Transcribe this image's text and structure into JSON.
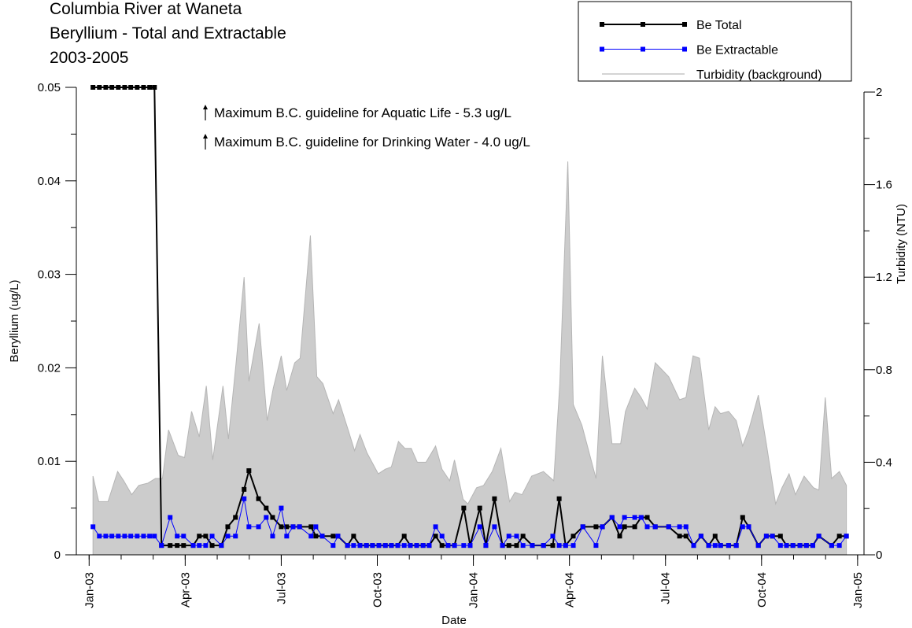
{
  "chart_data": {
    "type": "line",
    "title_lines": [
      "Columbia River at Waneta",
      "Beryllium - Total and Extractable",
      "2003-2005"
    ],
    "annotations": [
      "Maximum B.C. guideline for Aquatic Life - 5.3 ug/L",
      "Maximum B.C. guideline for Drinking Water - 4.0 ug/L"
    ],
    "x_label": "Date",
    "y_label": "Beryllium (ug/L)",
    "y2_label": "Turbidity (NTU)",
    "xlim": [
      -0.4,
      24.2
    ],
    "xticks": [
      {
        "value": 0,
        "label": "Jan-03"
      },
      {
        "value": 3,
        "label": "Apr-03"
      },
      {
        "value": 6,
        "label": "Jul-03"
      },
      {
        "value": 9,
        "label": "Oct-03"
      },
      {
        "value": 12,
        "label": "Jan-04"
      },
      {
        "value": 15,
        "label": "Apr-04"
      },
      {
        "value": 18,
        "label": "Jul-04"
      },
      {
        "value": 21,
        "label": "Oct-04"
      },
      {
        "value": 24,
        "label": "Jan-05"
      }
    ],
    "ylim": [
      0,
      0.05
    ],
    "yticks": [
      0,
      0.01,
      0.02,
      0.03,
      0.04,
      0.05
    ],
    "y2lim": [
      0,
      2
    ],
    "y2ticks": [
      0,
      0.4,
      0.8,
      1.2,
      1.6,
      2
    ],
    "legend": "top-right",
    "series": [
      {
        "name": "Be Total",
        "color": "#000000",
        "x": [
          0.12,
          0.32,
          0.52,
          0.71,
          0.91,
          1.11,
          1.3,
          1.5,
          1.7,
          1.89,
          2.04,
          2.26,
          2.53,
          2.75,
          2.95,
          3.25,
          3.44,
          3.64,
          3.84,
          4.13,
          4.33,
          4.57,
          4.84,
          4.99,
          5.29,
          5.53,
          5.73,
          6.0,
          6.17,
          6.37,
          6.57,
          6.93,
          7.08,
          7.28,
          7.62,
          7.77,
          8.07,
          8.26,
          8.46,
          8.66,
          8.85,
          9.05,
          9.25,
          9.44,
          9.64,
          9.84,
          10.03,
          10.23,
          10.43,
          10.62,
          10.82,
          11.02,
          11.21,
          11.41,
          11.7,
          11.9,
          12.2,
          12.39,
          12.66,
          12.91,
          13.11,
          13.35,
          13.55,
          13.84,
          14.19,
          14.48,
          14.68,
          14.88,
          15.12,
          15.42,
          15.83,
          16.03,
          16.33,
          16.57,
          16.72,
          17.04,
          17.24,
          17.43,
          17.68,
          18.1,
          18.44,
          18.64,
          18.88,
          19.11,
          19.35,
          19.55,
          19.72,
          19.97,
          20.21,
          20.41,
          20.6,
          20.9,
          21.15,
          21.34,
          21.59,
          21.78,
          21.98,
          22.2,
          22.4,
          22.6,
          22.79,
          23.19,
          23.43,
          23.65
        ],
        "values": [
          0.05,
          0.05,
          0.05,
          0.05,
          0.05,
          0.05,
          0.05,
          0.05,
          0.05,
          0.05,
          0.05,
          0.001,
          0.001,
          0.001,
          0.001,
          0.001,
          0.002,
          0.002,
          0.001,
          0.001,
          0.003,
          0.004,
          0.007,
          0.009,
          0.006,
          0.005,
          0.004,
          0.003,
          0.003,
          0.003,
          0.003,
          0.003,
          0.002,
          0.002,
          0.002,
          0.002,
          0.001,
          0.002,
          0.001,
          0.001,
          0.001,
          0.001,
          0.001,
          0.001,
          0.001,
          0.002,
          0.001,
          0.001,
          0.001,
          0.001,
          0.002,
          0.001,
          0.001,
          0.001,
          0.005,
          0.001,
          0.005,
          0.001,
          0.006,
          0.001,
          0.001,
          0.001,
          0.002,
          0.001,
          0.001,
          0.001,
          0.006,
          0.001,
          0.002,
          0.003,
          0.003,
          0.003,
          0.004,
          0.002,
          0.003,
          0.003,
          0.004,
          0.004,
          0.003,
          0.003,
          0.002,
          0.002,
          0.001,
          0.002,
          0.001,
          0.002,
          0.001,
          0.001,
          0.001,
          0.004,
          0.003,
          0.001,
          0.002,
          0.002,
          0.002,
          0.001,
          0.001,
          0.001,
          0.001,
          0.001,
          0.002,
          0.001,
          0.002,
          0.002
        ]
      },
      {
        "name": "Be Extractable",
        "color": "#0000ff",
        "x": [
          0.12,
          0.32,
          0.52,
          0.71,
          0.91,
          1.11,
          1.3,
          1.5,
          1.7,
          1.89,
          2.04,
          2.26,
          2.53,
          2.75,
          2.95,
          3.25,
          3.44,
          3.64,
          3.84,
          4.13,
          4.33,
          4.57,
          4.84,
          4.99,
          5.29,
          5.53,
          5.73,
          6.0,
          6.17,
          6.37,
          6.57,
          6.93,
          7.08,
          7.28,
          7.62,
          7.77,
          8.07,
          8.26,
          8.46,
          8.66,
          8.85,
          9.05,
          9.25,
          9.44,
          9.64,
          9.84,
          10.03,
          10.23,
          10.43,
          10.62,
          10.82,
          11.02,
          11.21,
          11.41,
          11.7,
          11.9,
          12.2,
          12.39,
          12.66,
          12.91,
          13.11,
          13.35,
          13.55,
          13.84,
          14.19,
          14.48,
          14.68,
          14.88,
          15.12,
          15.42,
          15.83,
          16.03,
          16.33,
          16.57,
          16.72,
          17.04,
          17.24,
          17.43,
          17.68,
          18.1,
          18.44,
          18.64,
          18.88,
          19.11,
          19.35,
          19.55,
          19.72,
          19.97,
          20.21,
          20.41,
          20.6,
          20.9,
          21.15,
          21.34,
          21.59,
          21.78,
          21.98,
          22.2,
          22.4,
          22.6,
          22.79,
          23.19,
          23.43,
          23.65
        ],
        "values": [
          0.003,
          0.002,
          0.002,
          0.002,
          0.002,
          0.002,
          0.002,
          0.002,
          0.002,
          0.002,
          0.002,
          0.001,
          0.004,
          0.002,
          0.002,
          0.001,
          0.001,
          0.001,
          0.002,
          0.001,
          0.002,
          0.002,
          0.006,
          0.003,
          0.003,
          0.004,
          0.002,
          0.005,
          0.002,
          0.003,
          0.003,
          0.002,
          0.003,
          0.002,
          0.001,
          0.002,
          0.001,
          0.001,
          0.001,
          0.001,
          0.001,
          0.001,
          0.001,
          0.001,
          0.001,
          0.001,
          0.001,
          0.001,
          0.001,
          0.001,
          0.003,
          0.002,
          0.001,
          0.001,
          0.001,
          0.001,
          0.003,
          0.001,
          0.003,
          0.001,
          0.002,
          0.002,
          0.001,
          0.001,
          0.001,
          0.002,
          0.001,
          0.001,
          0.001,
          0.003,
          0.001,
          0.003,
          0.004,
          0.003,
          0.004,
          0.004,
          0.004,
          0.003,
          0.003,
          0.003,
          0.003,
          0.003,
          0.001,
          0.002,
          0.001,
          0.001,
          0.001,
          0.001,
          0.001,
          0.003,
          0.003,
          0.001,
          0.002,
          0.002,
          0.001,
          0.001,
          0.001,
          0.001,
          0.001,
          0.001,
          0.002,
          0.001,
          0.001,
          0.002
        ]
      },
      {
        "name": "Turbidity (background)",
        "color": "#cccccc",
        "type": "area",
        "axis": "y2",
        "x": [
          0.12,
          0.3,
          0.59,
          0.89,
          1.08,
          1.33,
          1.55,
          1.84,
          2.07,
          2.29,
          2.48,
          2.78,
          2.98,
          3.2,
          3.44,
          3.66,
          3.86,
          4.18,
          4.35,
          4.59,
          4.84,
          4.99,
          5.31,
          5.56,
          5.75,
          6.0,
          6.17,
          6.42,
          6.59,
          6.91,
          7.11,
          7.3,
          7.62,
          7.79,
          8.09,
          8.29,
          8.46,
          8.68,
          9.03,
          9.25,
          9.44,
          9.66,
          9.86,
          10.06,
          10.25,
          10.52,
          10.82,
          11.02,
          11.26,
          11.41,
          11.68,
          11.83,
          12.1,
          12.32,
          12.59,
          12.86,
          13.13,
          13.3,
          13.52,
          13.82,
          14.19,
          14.51,
          14.7,
          14.95,
          15.12,
          15.39,
          15.83,
          16.03,
          16.33,
          16.6,
          16.75,
          17.04,
          17.24,
          17.43,
          17.68,
          18.1,
          18.44,
          18.64,
          18.86,
          19.06,
          19.35,
          19.55,
          19.72,
          19.97,
          20.21,
          20.41,
          20.6,
          20.9,
          21.15,
          21.44,
          21.64,
          21.86,
          22.06,
          22.33,
          22.62,
          22.79,
          22.99,
          23.19,
          23.43,
          23.65
        ],
        "values": [
          0.34,
          0.23,
          0.23,
          0.36,
          0.32,
          0.26,
          0.3,
          0.31,
          0.33,
          0.33,
          0.54,
          0.43,
          0.42,
          0.62,
          0.51,
          0.73,
          0.41,
          0.73,
          0.5,
          0.83,
          1.2,
          0.75,
          1.0,
          0.58,
          0.72,
          0.86,
          0.71,
          0.83,
          0.85,
          1.38,
          0.77,
          0.74,
          0.61,
          0.67,
          0.54,
          0.45,
          0.52,
          0.44,
          0.35,
          0.37,
          0.38,
          0.49,
          0.46,
          0.46,
          0.4,
          0.4,
          0.47,
          0.37,
          0.32,
          0.41,
          0.24,
          0.22,
          0.29,
          0.3,
          0.36,
          0.46,
          0.23,
          0.27,
          0.26,
          0.34,
          0.36,
          0.32,
          0.74,
          1.7,
          0.65,
          0.56,
          0.33,
          0.86,
          0.48,
          0.48,
          0.62,
          0.72,
          0.68,
          0.63,
          0.83,
          0.77,
          0.67,
          0.68,
          0.86,
          0.85,
          0.54,
          0.64,
          0.61,
          0.62,
          0.58,
          0.47,
          0.54,
          0.69,
          0.48,
          0.22,
          0.29,
          0.35,
          0.26,
          0.34,
          0.29,
          0.28,
          0.68,
          0.33,
          0.36,
          0.3
        ]
      }
    ]
  }
}
